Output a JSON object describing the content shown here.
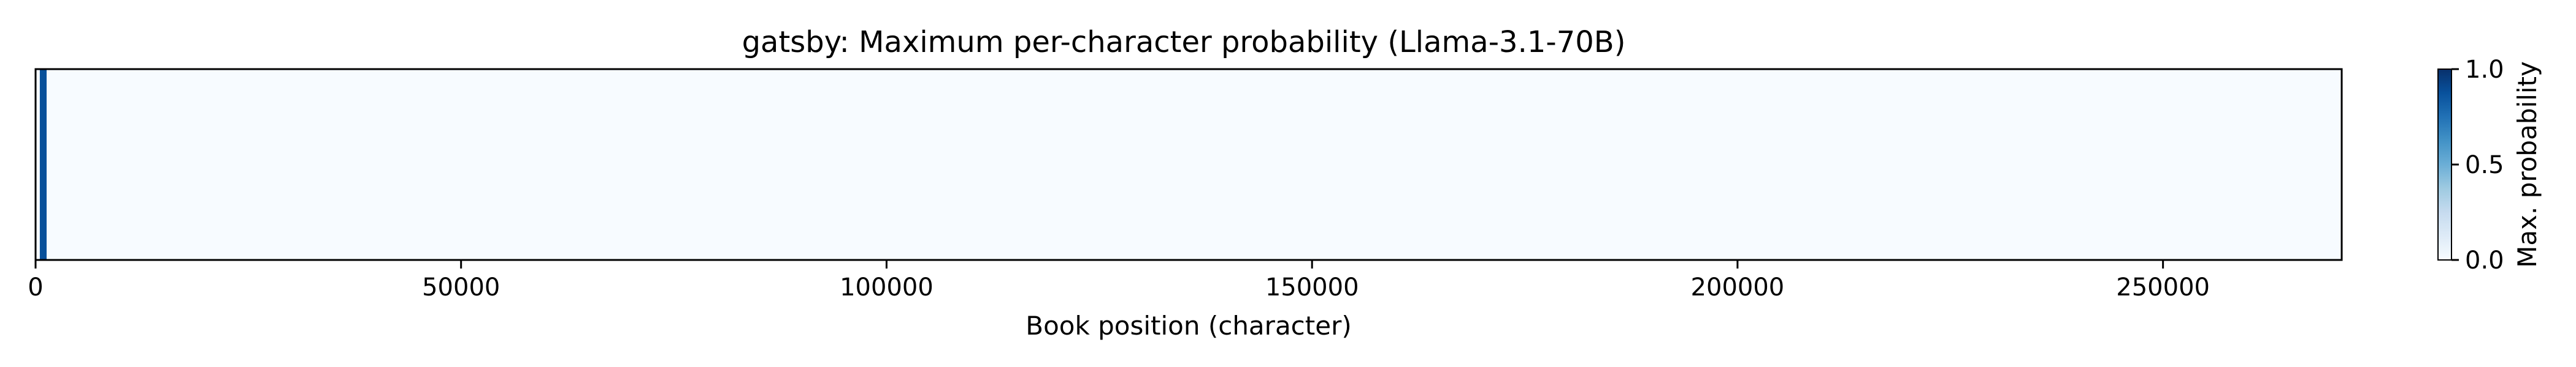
{
  "chart_data": {
    "type": "heatmap",
    "title": "gatsby: Maximum per-character probability (Llama-3.1-70B)",
    "xlabel": "Book position (character)",
    "xlim": [
      0,
      271000
    ],
    "x_ticks": [
      0,
      50000,
      100000,
      150000,
      200000,
      250000
    ],
    "x_tick_labels": [
      "0",
      "50000",
      "100000",
      "150000",
      "200000",
      "250000"
    ],
    "cells": [
      {
        "x_start": 0,
        "x_end": 500,
        "value": 0.0
      },
      {
        "x_start": 500,
        "x_end": 1300,
        "value": 0.88
      },
      {
        "x_start": 1300,
        "x_end": 271000,
        "value": 0.0
      }
    ],
    "background_value": 0.0,
    "colormap": "Blues",
    "colormap_low": "#f7fbff",
    "colormap_high": "#08306b",
    "colorbar": {
      "label": "Max. probability",
      "vmin": 0.0,
      "vmax": 1.0,
      "ticks": [
        0.0,
        0.5,
        1.0
      ],
      "tick_labels": [
        "0.0",
        "0.5",
        "1.0"
      ]
    },
    "grid": false
  }
}
